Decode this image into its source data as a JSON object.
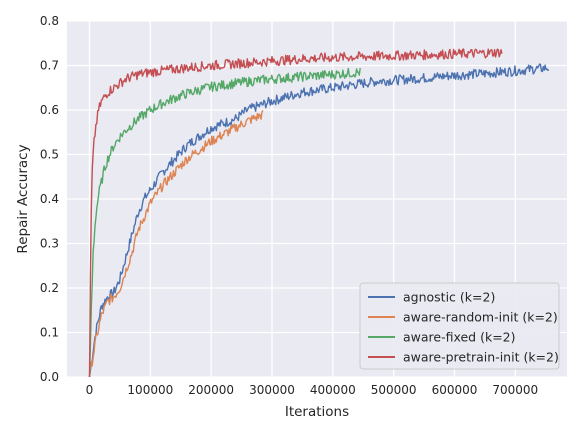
{
  "chart_data": {
    "type": "line",
    "xlabel": "Iterations",
    "ylabel": "Repair Accuracy",
    "xlim": [
      -37000,
      785000
    ],
    "ylim": [
      0,
      0.8
    ],
    "x_ticks": [
      0,
      100000,
      200000,
      300000,
      400000,
      500000,
      600000,
      700000
    ],
    "x_tick_labels": [
      "0",
      "100000",
      "200000",
      "300000",
      "400000",
      "500000",
      "600000",
      "700000"
    ],
    "y_ticks": [
      0.0,
      0.1,
      0.2,
      0.3,
      0.4,
      0.5,
      0.6,
      0.7,
      0.8
    ],
    "y_tick_labels": [
      "0.0",
      "0.1",
      "0.2",
      "0.3",
      "0.4",
      "0.5",
      "0.6",
      "0.7",
      "0.8"
    ],
    "grid": true,
    "legend_position": "bottom-right",
    "series": [
      {
        "name": "agnostic (k=2)",
        "color": "#4c72b0",
        "x": [
          0,
          5000,
          10000,
          20000,
          30000,
          40000,
          50000,
          60000,
          70000,
          80000,
          90000,
          100000,
          120000,
          140000,
          160000,
          180000,
          200000,
          220000,
          240000,
          260000,
          280000,
          300000,
          325000,
          350000,
          375000,
          400000,
          425000,
          450000,
          475000,
          500000,
          550000,
          600000,
          650000,
          700000,
          755000
        ],
        "y": [
          0.0,
          0.05,
          0.1,
          0.16,
          0.18,
          0.19,
          0.22,
          0.27,
          0.32,
          0.37,
          0.4,
          0.42,
          0.46,
          0.49,
          0.52,
          0.54,
          0.56,
          0.57,
          0.58,
          0.6,
          0.61,
          0.62,
          0.63,
          0.64,
          0.645,
          0.65,
          0.655,
          0.66,
          0.665,
          0.667,
          0.672,
          0.678,
          0.682,
          0.688,
          0.695
        ]
      },
      {
        "name": "aware-random-init (k=2)",
        "color": "#dd8452",
        "x": [
          0,
          5000,
          10000,
          20000,
          30000,
          40000,
          50000,
          60000,
          70000,
          80000,
          90000,
          100000,
          120000,
          140000,
          160000,
          180000,
          200000,
          220000,
          240000,
          260000,
          285000
        ],
        "y": [
          0.0,
          0.04,
          0.08,
          0.14,
          0.17,
          0.18,
          0.2,
          0.24,
          0.28,
          0.33,
          0.36,
          0.39,
          0.43,
          0.46,
          0.49,
          0.51,
          0.53,
          0.545,
          0.56,
          0.575,
          0.59
        ]
      },
      {
        "name": "aware-fixed (k=2)",
        "color": "#55a868",
        "x": [
          0,
          3000,
          6000,
          10000,
          15000,
          20000,
          25000,
          30000,
          40000,
          50000,
          60000,
          80000,
          100000,
          120000,
          140000,
          160000,
          180000,
          200000,
          240000,
          280000,
          320000,
          360000,
          400000,
          445000
        ],
        "y": [
          0.0,
          0.15,
          0.28,
          0.36,
          0.41,
          0.44,
          0.47,
          0.49,
          0.52,
          0.54,
          0.555,
          0.58,
          0.6,
          0.615,
          0.627,
          0.637,
          0.645,
          0.652,
          0.66,
          0.667,
          0.672,
          0.676,
          0.68,
          0.685
        ]
      },
      {
        "name": "aware-pretrain-init (k=2)",
        "color": "#c44e52",
        "x": [
          0,
          2000,
          4000,
          7000,
          10000,
          15000,
          20000,
          30000,
          40000,
          50000,
          60000,
          80000,
          100000,
          130000,
          160000,
          200000,
          250000,
          300000,
          350000,
          400000,
          450000,
          500000,
          550000,
          600000,
          650000,
          678000
        ],
        "y": [
          0.0,
          0.3,
          0.45,
          0.52,
          0.56,
          0.6,
          0.62,
          0.64,
          0.65,
          0.66,
          0.67,
          0.68,
          0.685,
          0.69,
          0.695,
          0.7,
          0.705,
          0.71,
          0.715,
          0.718,
          0.72,
          0.722,
          0.724,
          0.726,
          0.728,
          0.73
        ]
      }
    ]
  }
}
